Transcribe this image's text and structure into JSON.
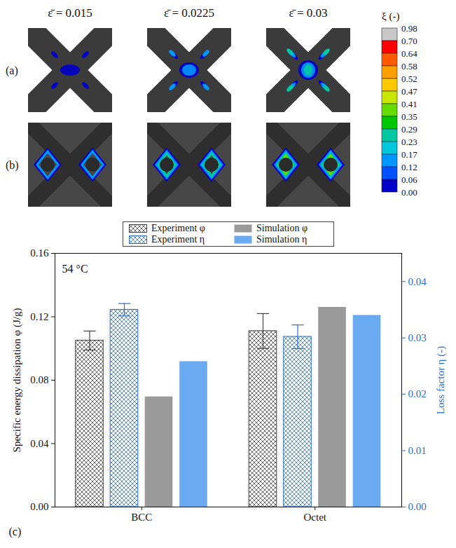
{
  "contour_figure": {
    "panel_labels": [
      "(a)",
      "(b)"
    ],
    "column_titles": [
      "ε̄ = 0.015",
      "ε̄ = 0.0225",
      "ε̄ = 0.03"
    ],
    "colorbar": {
      "label": "ξ (-)",
      "ticks": [
        0.98,
        {
          "value": 0.7,
          "label": "0.70"
        },
        0.64,
        0.58,
        0.52,
        0.47,
        0.41,
        0.35,
        0.29,
        0.23,
        0.17,
        0.12,
        0.06,
        {
          "value": 0,
          "label": "0.00"
        }
      ],
      "colors": [
        "#c8c8c8",
        "#ff0000",
        "#ff5a00",
        "#ffa000",
        "#ffc800",
        "#c8e600",
        "#64dc00",
        "#00c800",
        "#00c8a0",
        "#00c8dc",
        "#0096ff",
        "#0050ff",
        "#0000c8"
      ]
    }
  },
  "chart_data": {
    "type": "bar",
    "panel_label": "(c)",
    "annotations": [
      "54 °C"
    ],
    "categories": [
      "BCC",
      "Octet"
    ],
    "y_label": "Specific energy dissipation φ (J/g)",
    "y2_label": "Loss factor η (-)",
    "ylim": [
      0,
      0.16
    ],
    "yticks": [
      {
        "value": 0,
        "label": "0.00"
      },
      0.04,
      0.08,
      0.12,
      0.16
    ],
    "y2lim": [
      0,
      0.045
    ],
    "y2ticks": [
      {
        "value": 0,
        "label": "0.00"
      },
      0.01,
      0.02,
      0.03,
      0.04
    ],
    "legend": "top",
    "series": [
      {
        "name": "Experiment φ",
        "color": "#404040",
        "values": [
          0.105,
          0.111
        ],
        "errors": [
          0.006,
          0.011
        ]
      },
      {
        "name": "Experiment η",
        "color": "#2a6fc9",
        "axis": "y2",
        "values": [
          0.035,
          0.0302
        ],
        "errors": [
          0.0011,
          0.0021
        ]
      },
      {
        "name": "Simulation φ",
        "color": "#9a9a9a",
        "values": [
          0.0695,
          0.126
        ]
      },
      {
        "name": "Simulation η",
        "color": "#6aaaf0",
        "axis": "y2",
        "values": [
          0.0258,
          0.034
        ]
      }
    ]
  }
}
